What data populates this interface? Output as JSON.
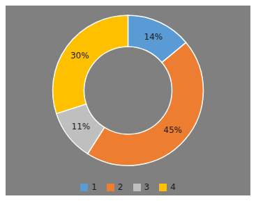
{
  "chart_data": {
    "type": "pie",
    "categories": [
      "1",
      "2",
      "3",
      "4"
    ],
    "values": [
      14,
      45,
      11,
      30
    ],
    "value_labels": [
      "14%",
      "45%",
      "11%",
      "30%"
    ],
    "colors": [
      "#5B9BD5",
      "#ED7D31",
      "#BFBFBF",
      "#FFC000"
    ],
    "data_labels": true,
    "legend": "bottom"
  }
}
